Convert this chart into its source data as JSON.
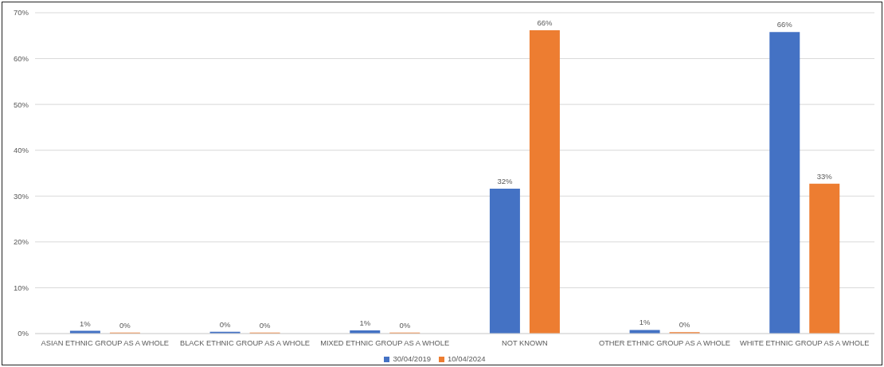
{
  "chart_data": {
    "type": "bar",
    "categories": [
      "ASIAN ETHNIC GROUP AS A WHOLE",
      "BLACK ETHNIC GROUP AS A WHOLE",
      "MIXED ETHNIC GROUP AS A WHOLE",
      "NOT KNOWN",
      "OTHER ETHNIC GROUP AS A WHOLE",
      "WHITE ETHNIC GROUP AS A WHOLE"
    ],
    "series": [
      {
        "name": "30/04/2019",
        "color": "#4472c4",
        "values": [
          0.6,
          0.4,
          0.7,
          31.6,
          0.8,
          65.8
        ],
        "value_labels": [
          "1%",
          "0%",
          "1%",
          "32%",
          "1%",
          "66%"
        ]
      },
      {
        "name": "10/04/2024",
        "color": "#ed7d31",
        "values": [
          0.2,
          0.2,
          0.2,
          66.2,
          0.3,
          32.7
        ],
        "value_labels": [
          "0%",
          "0%",
          "0%",
          "66%",
          "0%",
          "33%"
        ]
      }
    ],
    "ylim": [
      0,
      70
    ],
    "yticks": [
      {
        "value": 0,
        "label": "0%"
      },
      {
        "value": 10,
        "label": "10%"
      },
      {
        "value": 20,
        "label": "20%"
      },
      {
        "value": 30,
        "label": "30%"
      },
      {
        "value": 40,
        "label": "40%"
      },
      {
        "value": 50,
        "label": "50%"
      },
      {
        "value": 60,
        "label": "60%"
      },
      {
        "value": 70,
        "label": "70%"
      }
    ],
    "grid": "y",
    "legend": "bottom"
  }
}
